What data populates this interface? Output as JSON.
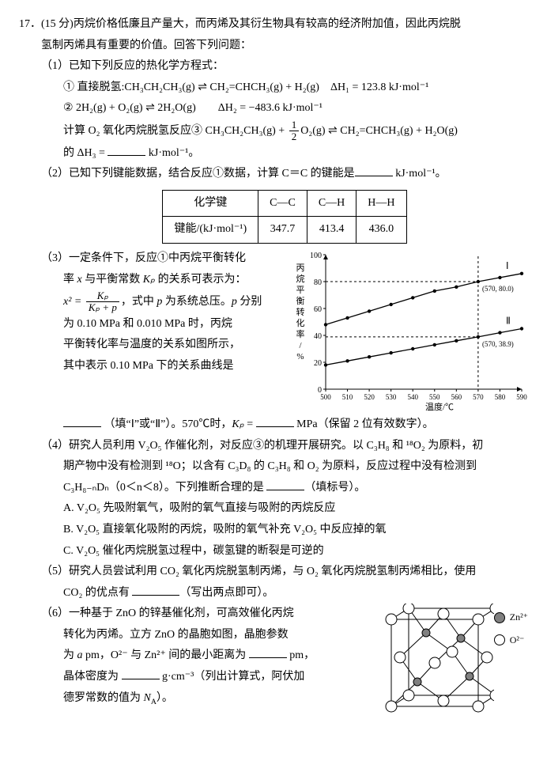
{
  "question": {
    "number": "17．",
    "points": "(15 分)",
    "stem_a": "丙烷价格低廉且产量大，而丙烯及其衍生物具有较高的经济附加值，因此丙烷脱",
    "stem_b": "氢制丙烯具有重要的价值。回答下列问题："
  },
  "p1": {
    "head": "（1）已知下列反应的热化学方程式：",
    "eq1_lead": "① 直接脱氢:",
    "eq1": "CH₃CH₂CH₃(g) ⇌ CH₂=CHCH₃(g) + H₂(g)　ΔH₁ = 123.8 kJ·mol⁻¹",
    "eq2": "② 2H₂(g) + O₂(g) ⇌ 2H₂O(g)　　ΔH₂ = −483.6 kJ·mol⁻¹",
    "eq3_lead": "计算 O₂ 氧化丙烷脱氢反应③ CH₃CH₂CH₃(g) + ",
    "eq3_frac_num": "1",
    "eq3_frac_den": "2",
    "eq3_tail": "O₂(g) ⇌ CH₂=CHCH₃(g) + H₂O(g)",
    "dh3_a": "的 ΔH₃ = ",
    "dh3_b": " kJ·mol⁻¹。"
  },
  "p2": {
    "head_a": "（2）已知下列键能数据，结合反应①数据，计算 C＝C 的键能是",
    "head_b": " kJ·mol⁻¹。",
    "table": {
      "h1": "化学键",
      "h2": "C—C",
      "h3": "C—H",
      "h4": "H—H",
      "r1": "键能/(kJ·mol⁻¹)",
      "v1": "347.7",
      "v2": "413.4",
      "v3": "436.0"
    }
  },
  "p3": {
    "l1": "（3）一定条件下，反应①中丙烷平衡转化",
    "l2a": "率 ",
    "l2x": "x",
    "l2b": " 与平衡常数 ",
    "l2kp": "Kₚ",
    "l2c": " 的关系可表示为：",
    "frac_lhs": "x² = ",
    "frac_num": "Kₚ",
    "frac_den": "Kₚ + p",
    "l3a": "，式中 ",
    "l3p": "p",
    "l3b": " 为系统总压。",
    "l3p2": "p",
    "l3c": " 分别",
    "l4": "为 0.10 MPa 和 0.010 MPa 时，丙烷",
    "l5": "平衡转化率与温度的关系如图所示，",
    "l6": "其中表示 0.10 MPa 下的关系曲线是",
    "l7a": "（填“Ⅰ”或“Ⅱ”）。570℃时，",
    "l7kp": "Kₚ",
    "l7b": " = ",
    "l7c": " MPa（保留 2 位有效数字）。",
    "chart": {
      "type": "line",
      "x": [
        500,
        510,
        520,
        530,
        540,
        550,
        560,
        570,
        580,
        590
      ],
      "xlabel": "温度/℃",
      "ylabel": "丙烷平衡转化率/%",
      "ylim": [
        0,
        100
      ],
      "ytick_step": 20,
      "xlim": [
        500,
        590
      ],
      "xtick_step": 10,
      "series": [
        {
          "name": "Ⅰ",
          "y": [
            48,
            53,
            58,
            63,
            68,
            73,
            76,
            80,
            83,
            86
          ],
          "annot": "(570, 80.0)",
          "annot_at": 80
        },
        {
          "name": "Ⅱ",
          "y": [
            18,
            21,
            24,
            27,
            30,
            33,
            36,
            38.9,
            42,
            45
          ],
          "annot": "(570, 38.9)",
          "annot_at": 38.9
        }
      ],
      "guide_x": 570,
      "colors": {
        "line": "#000000",
        "grid": "#000000",
        "bg": "#ffffff"
      },
      "marker": "circle",
      "marker_fill": "#000000",
      "marker_r": 2.2,
      "line_width": 1.3
    }
  },
  "p4": {
    "l1": "（4）研究人员利用 V₂O₅ 作催化剂，对反应③的机理开展研究。以 C₃H₈ 和 ¹⁸O₂ 为原料，初",
    "l2": "期产物中没有检测到 ¹⁸O；以含有 C₃D₈ 的 C₃H₈ 和 O₂ 为原料，反应过程中没有检测到",
    "l3a": "C₃H₈₋ₙDₙ（0＜n＜8）。下列推断合理的是 ",
    "l3b": "（填标号）。",
    "A": "A. V₂O₅ 先吸附氧气，吸附的氧气直接与吸附的丙烷反应",
    "B": "B. V₂O₅ 直接氧化吸附的丙烷，吸附的氧气补充 V₂O₅ 中反应掉的氧",
    "C": "C. V₂O₅ 催化丙烷脱氢过程中，碳氢键的断裂是可逆的"
  },
  "p5": {
    "l1": "（5）研究人员尝试利用 CO₂ 氧化丙烷脱氢制丙烯，与 O₂ 氧化丙烷脱氢制丙烯相比，使用",
    "l2a": "CO₂ 的优点有 ",
    "l2b": "（写出两点即可）。"
  },
  "p6": {
    "l1": "（6）一种基于 ZnO 的锌基催化剂，可高效催化丙烷",
    "l2": "转化为丙烯。立方 ZnO 的晶胞如图，晶胞参数",
    "l3a": "为 ",
    "l3a_i": "a",
    "l3b": " pm，O²⁻ 与 Zn²⁺ 间的最小距离为 ",
    "l3c": " pm，",
    "l4a": "晶体密度为 ",
    "l4b": " g·cm⁻³（列出计算式，阿伏加",
    "l5": "德罗常数的值为 N_A）。",
    "legend": {
      "zn": "Zn²⁺",
      "o": "O²⁻"
    },
    "crystal": {
      "size": 170,
      "zn_fill": "#808080",
      "zn_stroke": "#000000",
      "o_fill": "#ffffff",
      "o_stroke": "#000000",
      "edge_color": "#000000"
    }
  }
}
